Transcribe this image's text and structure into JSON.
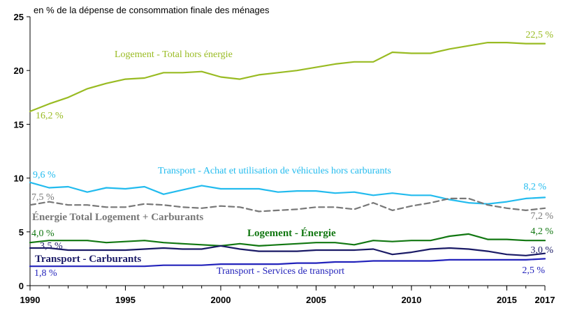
{
  "chart_data": {
    "type": "line",
    "title": "",
    "unit_label": "en % de la dépense de consommation finale des ménages",
    "xlabel": "",
    "ylabel": "",
    "xlim": [
      1990,
      2017
    ],
    "ylim": [
      0,
      25
    ],
    "x_ticks": [
      1990,
      1995,
      2000,
      2005,
      2010,
      2015,
      2017
    ],
    "x_tick_labels": [
      "1990",
      "1995",
      "2000",
      "2005",
      "2010",
      "2015",
      "2017"
    ],
    "y_ticks": [
      0,
      5,
      10,
      15,
      20,
      25
    ],
    "y_tick_labels": [
      "0",
      "5",
      "10",
      "15",
      "20",
      "25"
    ],
    "grid": false,
    "legend": "inline labels",
    "x": [
      1990,
      1991,
      1992,
      1993,
      1994,
      1995,
      1996,
      1997,
      1998,
      1999,
      2000,
      2001,
      2002,
      2003,
      2004,
      2005,
      2006,
      2007,
      2008,
      2009,
      2010,
      2011,
      2012,
      2013,
      2014,
      2015,
      2016,
      2017
    ],
    "series": [
      {
        "name": "Logement - Total hors énergie",
        "color": "#99bb22",
        "dash": "none",
        "values": [
          16.2,
          16.9,
          17.5,
          18.3,
          18.8,
          19.2,
          19.3,
          19.8,
          19.8,
          19.9,
          19.4,
          19.2,
          19.6,
          19.8,
          20.0,
          20.3,
          20.6,
          20.8,
          20.8,
          21.7,
          21.6,
          21.6,
          22.0,
          22.3,
          22.6,
          22.6,
          22.5,
          22.5
        ],
        "start_label": "16,2 %",
        "end_label": "22,5 %"
      },
      {
        "name": "Transport - Achat et utilisation de véhicules hors carburants",
        "color": "#22bbee",
        "dash": "none",
        "values": [
          9.6,
          9.1,
          9.2,
          8.7,
          9.1,
          9.0,
          9.2,
          8.5,
          8.9,
          9.3,
          9.0,
          9.0,
          9.0,
          8.7,
          8.8,
          8.8,
          8.6,
          8.7,
          8.4,
          8.6,
          8.4,
          8.4,
          8.0,
          7.7,
          7.6,
          7.8,
          8.1,
          8.2
        ],
        "start_label": "9,6 %",
        "end_label": "8,2 %"
      },
      {
        "name": "Énergie Total Logement + Carburants",
        "color": "#777777",
        "dash": "8,5",
        "values": [
          7.5,
          7.8,
          7.5,
          7.5,
          7.3,
          7.3,
          7.6,
          7.5,
          7.3,
          7.2,
          7.4,
          7.3,
          6.9,
          7.0,
          7.1,
          7.3,
          7.3,
          7.1,
          7.7,
          7.0,
          7.4,
          7.7,
          8.1,
          8.1,
          7.5,
          7.2,
          7.0,
          7.2
        ],
        "start_label": "7,5 %",
        "end_label": "7,2 %"
      },
      {
        "name": "Logement - Énergie",
        "color": "#117711",
        "dash": "none",
        "values": [
          4.0,
          4.2,
          4.2,
          4.2,
          4.0,
          4.1,
          4.2,
          4.0,
          3.9,
          3.8,
          3.7,
          3.9,
          3.7,
          3.8,
          3.9,
          4.0,
          4.0,
          3.8,
          4.2,
          4.1,
          4.2,
          4.2,
          4.6,
          4.8,
          4.3,
          4.3,
          4.2,
          4.2
        ],
        "start_label": "4,0 %",
        "end_label": "4,2 %"
      },
      {
        "name": "Transport - Carburants",
        "color": "#1a1a66",
        "dash": "none",
        "values": [
          3.5,
          3.5,
          3.3,
          3.3,
          3.3,
          3.3,
          3.4,
          3.5,
          3.4,
          3.4,
          3.7,
          3.4,
          3.2,
          3.2,
          3.2,
          3.3,
          3.3,
          3.3,
          3.4,
          2.9,
          3.1,
          3.4,
          3.5,
          3.4,
          3.2,
          2.9,
          2.8,
          3.0
        ],
        "start_label": "3,5 %",
        "end_label": "3,0 %"
      },
      {
        "name": "Transport - Services de transport",
        "color": "#2222bb",
        "dash": "none",
        "values": [
          1.8,
          1.8,
          1.8,
          1.8,
          1.8,
          1.8,
          1.8,
          1.9,
          1.9,
          1.9,
          2.0,
          2.0,
          2.0,
          2.0,
          2.1,
          2.1,
          2.2,
          2.2,
          2.3,
          2.3,
          2.3,
          2.3,
          2.4,
          2.4,
          2.4,
          2.4,
          2.4,
          2.5
        ],
        "start_label": "1,8 %",
        "end_label": "2,5 %"
      }
    ]
  }
}
